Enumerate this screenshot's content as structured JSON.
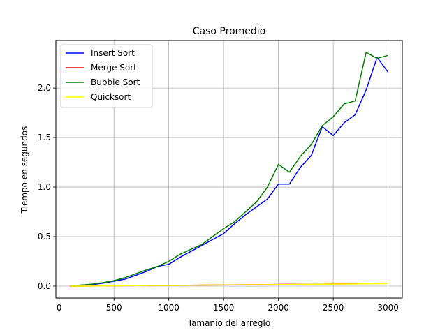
{
  "chart_data": {
    "type": "line",
    "title": "Caso Promedio",
    "xlabel": "Tamanio del arreglo",
    "ylabel": "Tiempo en segundos",
    "xlim": [
      -30,
      3130
    ],
    "ylim": [
      -0.12,
      2.48
    ],
    "xticks": [
      0,
      500,
      1000,
      1500,
      2000,
      2500,
      3000
    ],
    "yticks": [
      0.0,
      0.5,
      1.0,
      1.5,
      2.0
    ],
    "xtick_labels": [
      "0",
      "500",
      "1000",
      "1500",
      "2000",
      "2500",
      "3000"
    ],
    "ytick_labels": [
      "0.0",
      "0.5",
      "1.0",
      "1.5",
      "2.0"
    ],
    "grid": true,
    "legend_position": "top-left",
    "x": [
      100,
      200,
      300,
      400,
      500,
      600,
      700,
      800,
      900,
      1000,
      1100,
      1200,
      1300,
      1400,
      1500,
      1600,
      1700,
      1800,
      1900,
      2000,
      2100,
      2200,
      2300,
      2400,
      2500,
      2600,
      2700,
      2800,
      2900,
      3000
    ],
    "series": [
      {
        "name": "Insert Sort",
        "color": "#0000ff",
        "values": [
          0.0,
          0.01,
          0.015,
          0.03,
          0.05,
          0.07,
          0.11,
          0.15,
          0.2,
          0.22,
          0.29,
          0.35,
          0.41,
          0.47,
          0.53,
          0.63,
          0.72,
          0.8,
          0.88,
          1.03,
          1.03,
          1.2,
          1.32,
          1.61,
          1.52,
          1.65,
          1.73,
          1.98,
          2.31,
          2.16
        ]
      },
      {
        "name": "Merge Sort",
        "color": "#ff0000",
        "values": [
          0.0,
          0.0,
          0.001,
          0.002,
          0.003,
          0.004,
          0.005,
          0.006,
          0.007,
          0.008,
          0.008,
          0.009,
          0.01,
          0.011,
          0.012,
          0.013,
          0.014,
          0.015,
          0.016,
          0.017,
          0.018,
          0.018,
          0.019,
          0.02,
          0.021,
          0.022,
          0.023,
          0.024,
          0.025,
          0.026
        ]
      },
      {
        "name": "Bubble Sort",
        "color": "#008000",
        "values": [
          0.0,
          0.01,
          0.02,
          0.035,
          0.055,
          0.085,
          0.125,
          0.165,
          0.2,
          0.25,
          0.32,
          0.37,
          0.42,
          0.5,
          0.58,
          0.65,
          0.75,
          0.85,
          1.0,
          1.23,
          1.15,
          1.31,
          1.43,
          1.62,
          1.71,
          1.84,
          1.87,
          2.36,
          2.3,
          2.33
        ]
      },
      {
        "name": "Quicksort",
        "color": "#ffff00",
        "values": [
          0.0,
          0.0,
          0.001,
          0.002,
          0.003,
          0.004,
          0.005,
          0.006,
          0.007,
          0.007,
          0.008,
          0.009,
          0.01,
          0.01,
          0.011,
          0.012,
          0.013,
          0.014,
          0.015,
          0.016,
          0.016,
          0.017,
          0.018,
          0.019,
          0.02,
          0.021,
          0.022,
          0.023,
          0.024,
          0.025
        ]
      }
    ]
  }
}
